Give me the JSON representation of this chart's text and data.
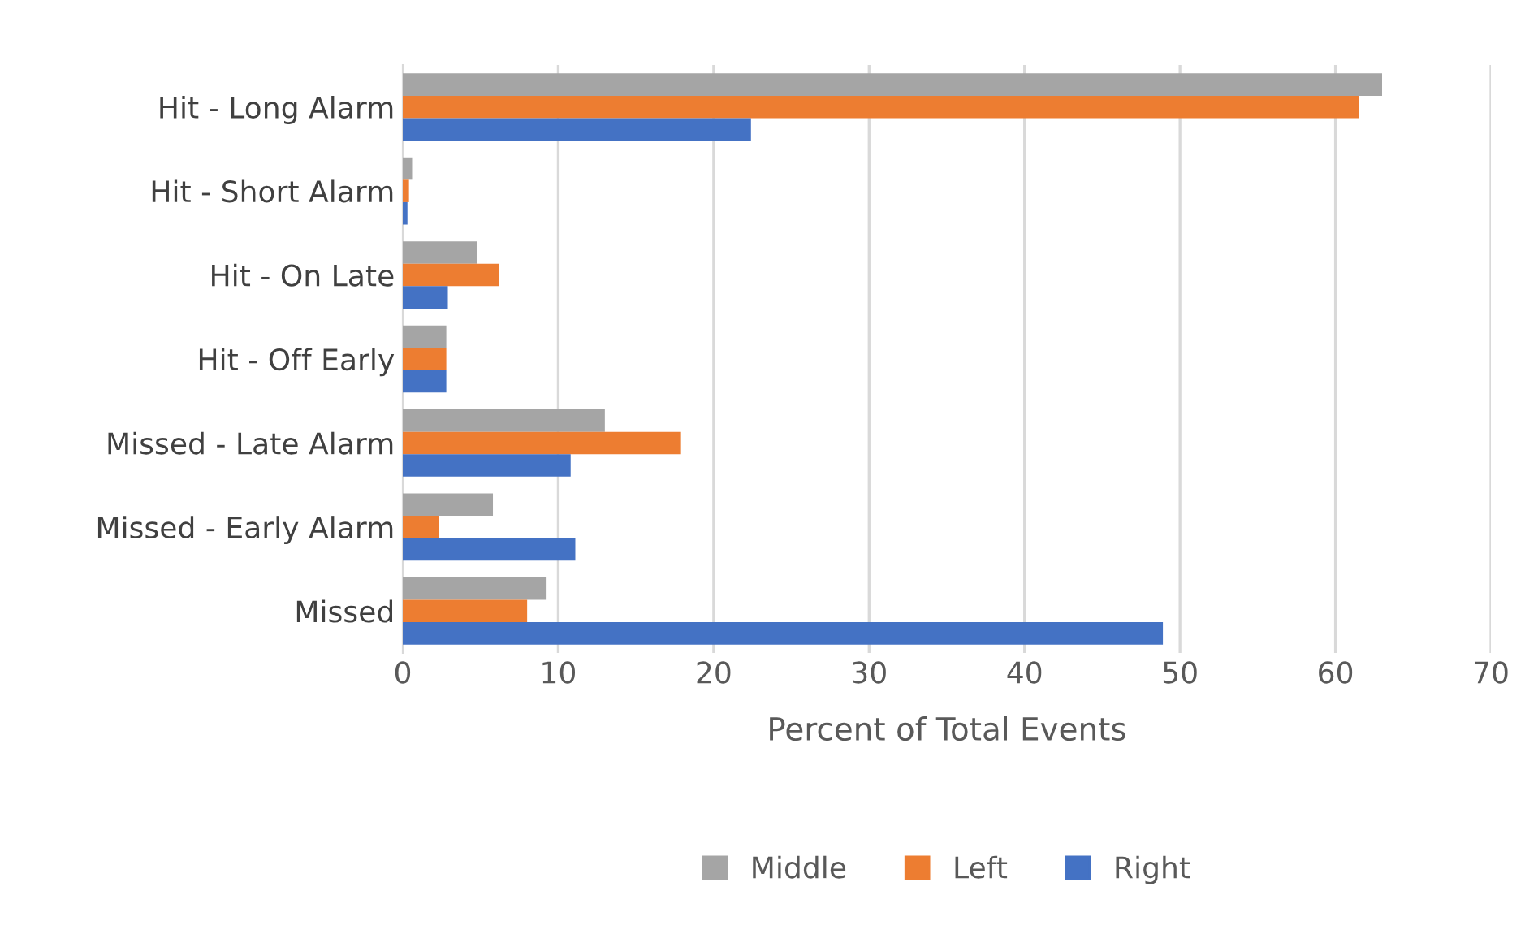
{
  "chart_data": {
    "type": "bar",
    "orientation": "horizontal",
    "xlabel": "Percent of Total Events",
    "categories": [
      "Hit - Long Alarm",
      "Hit - Short Alarm",
      "Hit - On Late",
      "Hit - Off Early",
      "Missed - Late Alarm",
      "Missed - Early Alarm",
      "Missed"
    ],
    "series": [
      {
        "name": "Middle",
        "color": "#a5a5a5",
        "values": [
          63.0,
          0.6,
          4.8,
          2.8,
          13.0,
          5.8,
          9.2
        ]
      },
      {
        "name": "Left",
        "color": "#ed7d31",
        "values": [
          61.5,
          0.4,
          6.2,
          2.8,
          17.9,
          2.3,
          8.0
        ]
      },
      {
        "name": "Right",
        "color": "#4472c4",
        "values": [
          22.4,
          0.3,
          2.9,
          2.8,
          10.8,
          11.1,
          48.9
        ]
      }
    ],
    "xlim": [
      0,
      70
    ],
    "xticks": [
      0,
      10,
      20,
      30,
      40,
      50,
      60,
      70
    ],
    "grid": "x",
    "legend": "bottom"
  }
}
